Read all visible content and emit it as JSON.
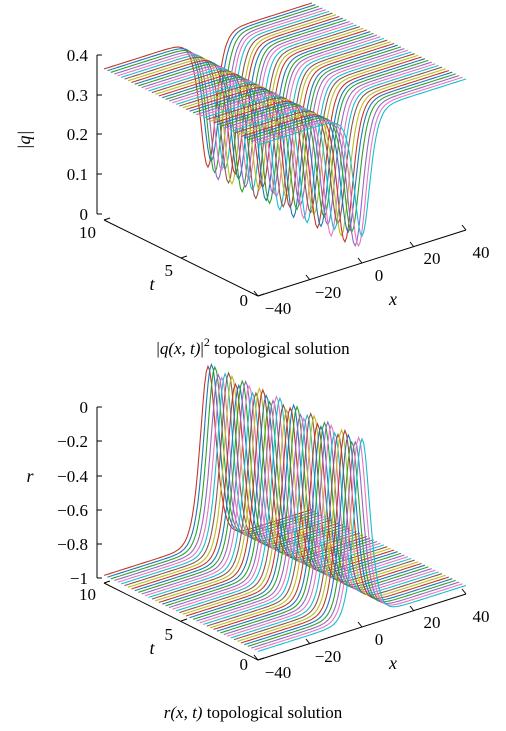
{
  "chart_data": [
    {
      "type": "surface",
      "title": "|q(x,t)|^2 topological solution",
      "caption": {
        "pre": "|",
        "q": "q",
        "args": "(x, t)",
        "bar": "|",
        "sup": "2",
        "post": " topological solution"
      },
      "zlabel": "|q|",
      "xlabel": "x",
      "ylabel": "t",
      "x_ticks": [
        "−40",
        "−20",
        "0",
        "20",
        "40"
      ],
      "t_ticks": [
        "0",
        "5",
        "10"
      ],
      "z_ticks": [
        "0",
        "0.1",
        "0.2",
        "0.3",
        "0.4"
      ],
      "xlim": [
        -40,
        40
      ],
      "tlim": [
        0,
        10
      ],
      "zlim": [
        0,
        0.4
      ],
      "surface": {
        "background_value": 0.38,
        "dip_min": 0.0,
        "dip_center_x": 0,
        "dip_width": 4
      }
    },
    {
      "type": "surface",
      "title": "r(x,t) topological solution",
      "caption": {
        "r": "r",
        "args": "(x, t)",
        "post": " topological solution"
      },
      "zlabel": "r",
      "xlabel": "x",
      "ylabel": "t",
      "x_ticks": [
        "−40",
        "−20",
        "0",
        "20",
        "40"
      ],
      "t_ticks": [
        "0",
        "5",
        "10"
      ],
      "z_ticks": [
        "−1",
        "−0.8",
        "−0.6",
        "−0.4",
        "−0.2",
        "0"
      ],
      "xlim": [
        -40,
        40
      ],
      "tlim": [
        0,
        10
      ],
      "zlim": [
        -1,
        0
      ],
      "surface": {
        "background_value": -0.95,
        "peak_value": 0.08,
        "peak_center_x": 0,
        "peak_width": 4
      }
    }
  ],
  "colors": [
    "#c0392b",
    "#1f77b4",
    "#2ca02c",
    "#9467bd",
    "#e377c2",
    "#17becf",
    "#8c564b",
    "#bcbd22"
  ]
}
